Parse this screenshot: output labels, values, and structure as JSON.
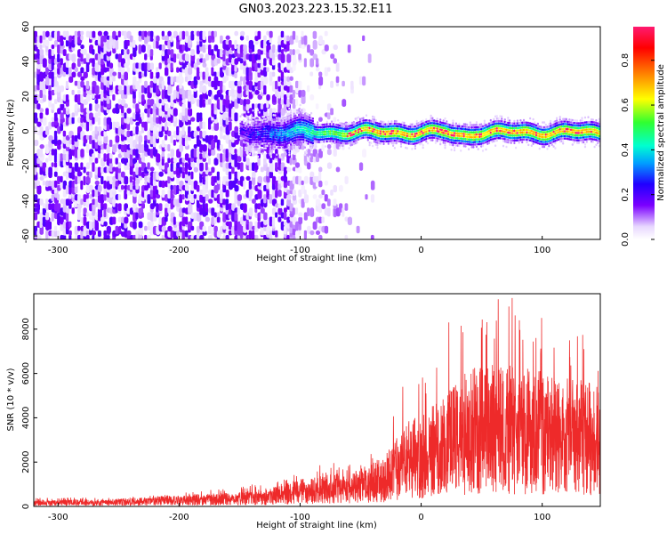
{
  "title": "GN03.2023.223.15.32.E11",
  "chart_data": [
    {
      "type": "heatmap",
      "xlabel": "Height of straight line (km)",
      "ylabel": "Frequency (Hz)",
      "xlim": [
        -320,
        148
      ],
      "ylim": [
        -62,
        60
      ],
      "xticks": [
        -300,
        -200,
        -100,
        0,
        100
      ],
      "yticks": [
        60,
        40,
        20,
        0,
        -20,
        -40,
        -60
      ],
      "colorbar": {
        "label": "Normalized spectral amplitude",
        "range": [
          0.0,
          0.95
        ],
        "ticks": [
          0.0,
          0.2,
          0.4,
          0.6,
          0.8
        ],
        "colormap": [
          "#ffffff",
          "#e8d8ff",
          "#7b00ff",
          "#2000ff",
          "#00a0ff",
          "#00ffd0",
          "#30ff30",
          "#ffff00",
          "#ff8000",
          "#ff0000",
          "#ff1a70"
        ]
      },
      "band": {
        "center_hz": 0,
        "halfwidth_hz": 5,
        "start_km": -150,
        "end_km": 148,
        "peak_amplitude": 0.92
      },
      "noise_region": {
        "x_range": [
          -320,
          -110
        ],
        "freq_range": [
          -60,
          60
        ],
        "amplitude": 0.3
      }
    },
    {
      "type": "line",
      "xlabel": "Height of straight line (km)",
      "ylabel": "SNR (10 * v/v)",
      "xlim": [
        -320,
        148
      ],
      "ylim": [
        0,
        9600
      ],
      "xticks": [
        -300,
        -200,
        -100,
        0,
        100
      ],
      "yticks": [
        0,
        2000,
        4000,
        6000,
        8000
      ],
      "color": "#ee2a2a",
      "envelope": {
        "x": [
          -320,
          -250,
          -200,
          -150,
          -120,
          -100,
          -80,
          -60,
          -45,
          -30,
          -20,
          -10,
          0,
          10,
          20,
          30,
          40,
          60,
          80,
          100,
          120,
          148
        ],
        "mean": [
          150,
          200,
          280,
          380,
          520,
          700,
          800,
          900,
          1000,
          1300,
          1800,
          2200,
          2400,
          2700,
          3000,
          3300,
          3600,
          3700,
          3600,
          3500,
          3300,
          3200
        ],
        "peak": [
          380,
          450,
          600,
          900,
          1200,
          1500,
          2000,
          2000,
          2200,
          3000,
          6100,
          5200,
          5800,
          6600,
          8400,
          9200,
          9500,
          9400,
          9500,
          8600,
          8000,
          7600
        ]
      }
    }
  ]
}
